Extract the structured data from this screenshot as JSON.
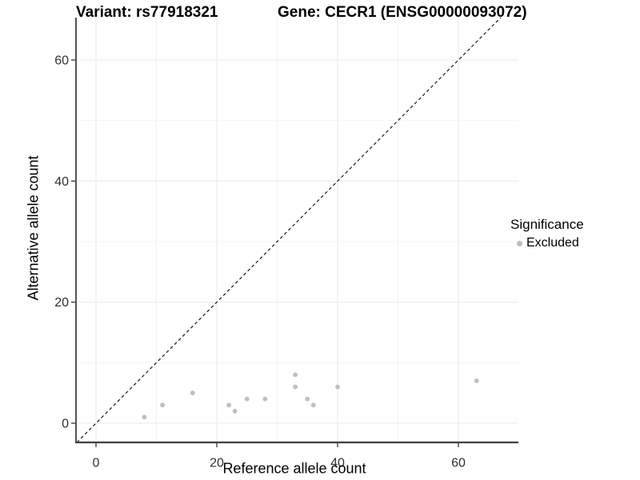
{
  "chart_data": {
    "type": "scatter",
    "title_left": "Variant: rs77918321",
    "title_right": "Gene: CECR1 (ENSG00000093072)",
    "xlabel": "Reference allele count",
    "ylabel": "Alternative allele count",
    "x_ticks": [
      0,
      20,
      40,
      60
    ],
    "x_minor_ticks": [
      10,
      30,
      50
    ],
    "y_ticks": [
      0,
      20,
      40,
      60
    ],
    "y_minor_ticks": [
      10,
      30,
      50
    ],
    "xlim": [
      -3.2,
      69.9
    ],
    "ylim": [
      -3.2,
      67.0
    ],
    "grid": "major+minor",
    "legend_position": "right",
    "identity_line": {
      "slope": 1,
      "intercept": 0,
      "style": "dashed",
      "color": "#1a1a1a"
    },
    "legend": {
      "title": "Significance",
      "items": [
        {
          "label": "Excluded",
          "color": "#bebebe"
        }
      ]
    },
    "series": [
      {
        "name": "Excluded",
        "color": "#bebebe",
        "points": [
          [
            8,
            1
          ],
          [
            11,
            3
          ],
          [
            16,
            5
          ],
          [
            22,
            3
          ],
          [
            23,
            2
          ],
          [
            25,
            4
          ],
          [
            28,
            4
          ],
          [
            33,
            6
          ],
          [
            33,
            8
          ],
          [
            35,
            4
          ],
          [
            36,
            3
          ],
          [
            40,
            6
          ],
          [
            63,
            7
          ]
        ]
      }
    ]
  },
  "style_colors": {
    "point": "#bebebe",
    "grid_major": "#ebebeb",
    "grid_minor": "#f4f4f4",
    "axis_line": "#404040",
    "tick_text": "#303030"
  }
}
